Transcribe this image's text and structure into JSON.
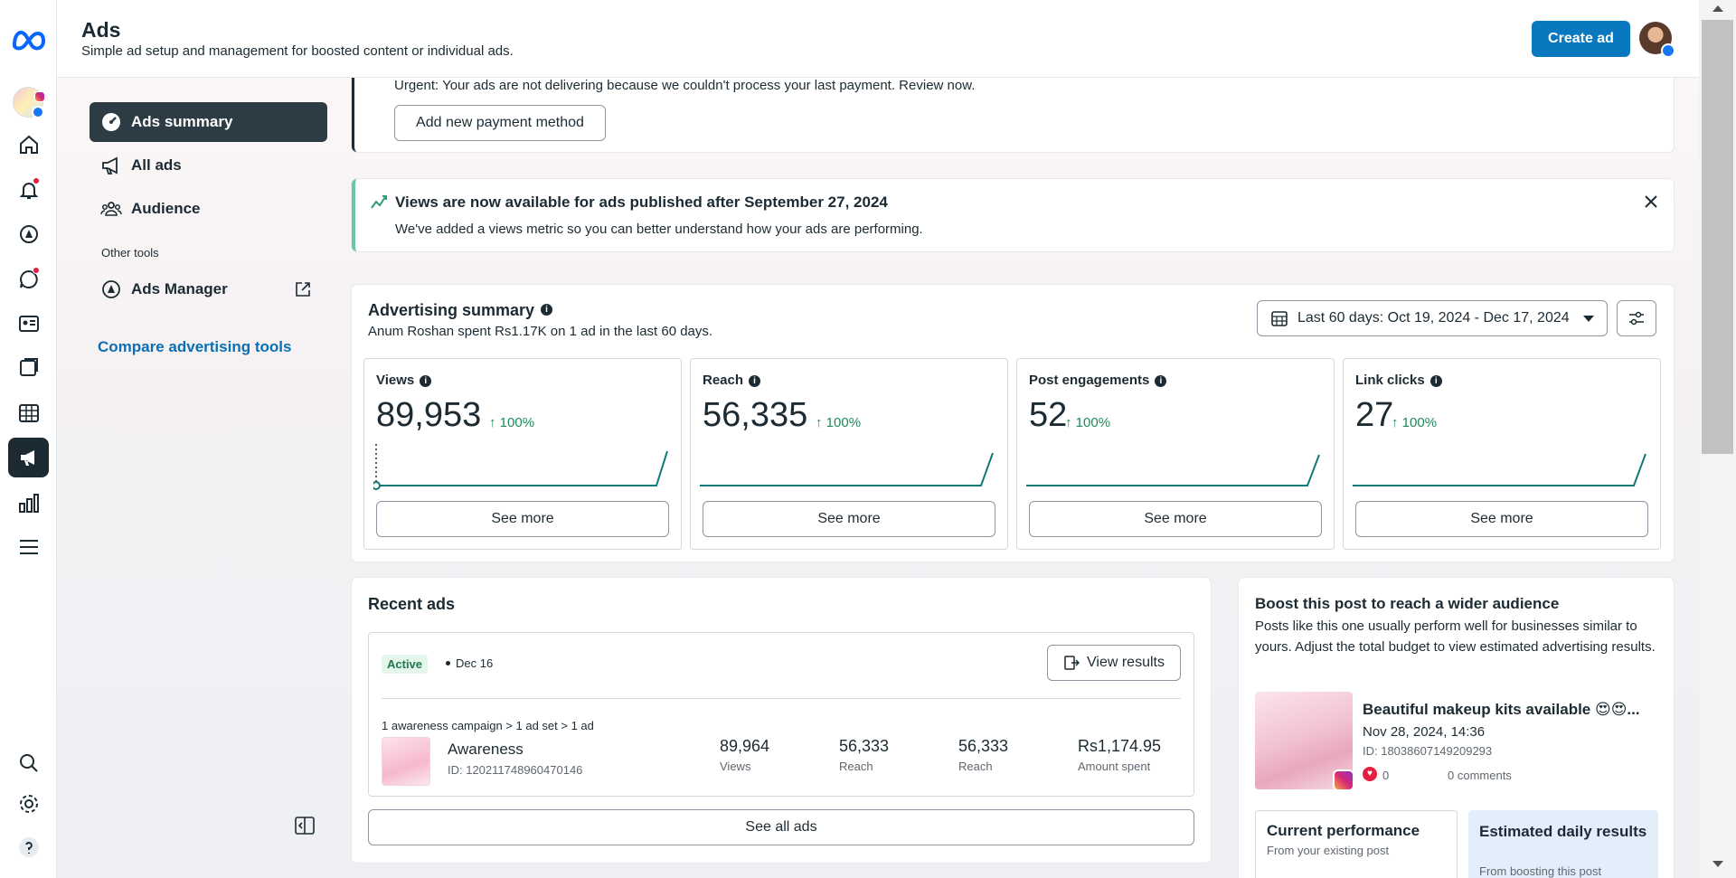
{
  "rail": {
    "icons": [
      "meta-logo-icon",
      "page-avatar",
      "home-icon",
      "notifications-icon",
      "ads-manager-icon",
      "messages-icon",
      "contacts-icon",
      "content-icon",
      "planner-icon",
      "ads-icon",
      "insights-icon",
      "menu-icon",
      "search-icon",
      "settings-icon",
      "help-icon"
    ]
  },
  "header": {
    "title": "Ads",
    "subtitle": "Simple ad setup and management for boosted content or individual ads.",
    "create_label": "Create ad"
  },
  "sidebar": {
    "items": [
      {
        "label": "Ads summary"
      },
      {
        "label": "All ads"
      },
      {
        "label": "Audience"
      }
    ],
    "other_tools": "Other tools",
    "ads_manager": "Ads Manager",
    "compare": "Compare advertising tools"
  },
  "alerts": {
    "payment": {
      "message": "Urgent: Your ads are not delivering because we couldn't process your last payment. Review now.",
      "button": "Add new payment method"
    },
    "views": {
      "title": "Views are now available for ads published after September 27, 2024",
      "body": "We've added a views metric so you can better understand how your ads are performing."
    }
  },
  "summary": {
    "title": "Advertising summary",
    "subtitle": "Anum Roshan spent Rs1.17K on 1 ad in the last 60 days.",
    "date_range": "Last 60 days: Oct 19, 2024 - Dec 17, 2024",
    "metrics": [
      {
        "label": "Views",
        "value": "89,953",
        "change": "100%",
        "see_more": "See more"
      },
      {
        "label": "Reach",
        "value": "56,335",
        "change": "100%",
        "see_more": "See more"
      },
      {
        "label": "Post engagements",
        "value": "52",
        "change": "100%",
        "see_more": "See more"
      },
      {
        "label": "Link clicks",
        "value": "27",
        "change": "100%",
        "see_more": "See more"
      }
    ]
  },
  "recent": {
    "title": "Recent ads",
    "status": "Active",
    "date": "Dec 16",
    "view_results": "View results",
    "breadcrumb": "1 awareness campaign > 1 ad set > 1 ad",
    "ad_name": "Awareness",
    "ad_id": "ID: 120211748960470146",
    "stats": [
      {
        "value": "89,964",
        "label": "Views"
      },
      {
        "value": "56,333",
        "label": "Reach"
      },
      {
        "value": "56,333",
        "label": "Reach"
      },
      {
        "value": "Rs1,174.95",
        "label": "Amount spent"
      }
    ],
    "see_all": "See all ads"
  },
  "boost": {
    "title": "Boost this post to reach a wider audience",
    "description": "Posts like this one usually perform well for businesses similar to yours. Adjust the total budget to view estimated advertising results.",
    "post_title": "Beautiful makeup kits available 😍😍...",
    "post_date": "Nov 28, 2024, 14:36",
    "post_id": "ID: 18038607149209293",
    "likes": "0",
    "comments": "0 comments",
    "current_title": "Current performance",
    "current_sub": "From your existing post",
    "estimated_title": "Estimated daily results",
    "estimated_sub": "From boosting this post"
  },
  "colors": {
    "accent": "#0a78be",
    "positive": "#1e8a5a",
    "chart": "#0f7a78"
  }
}
